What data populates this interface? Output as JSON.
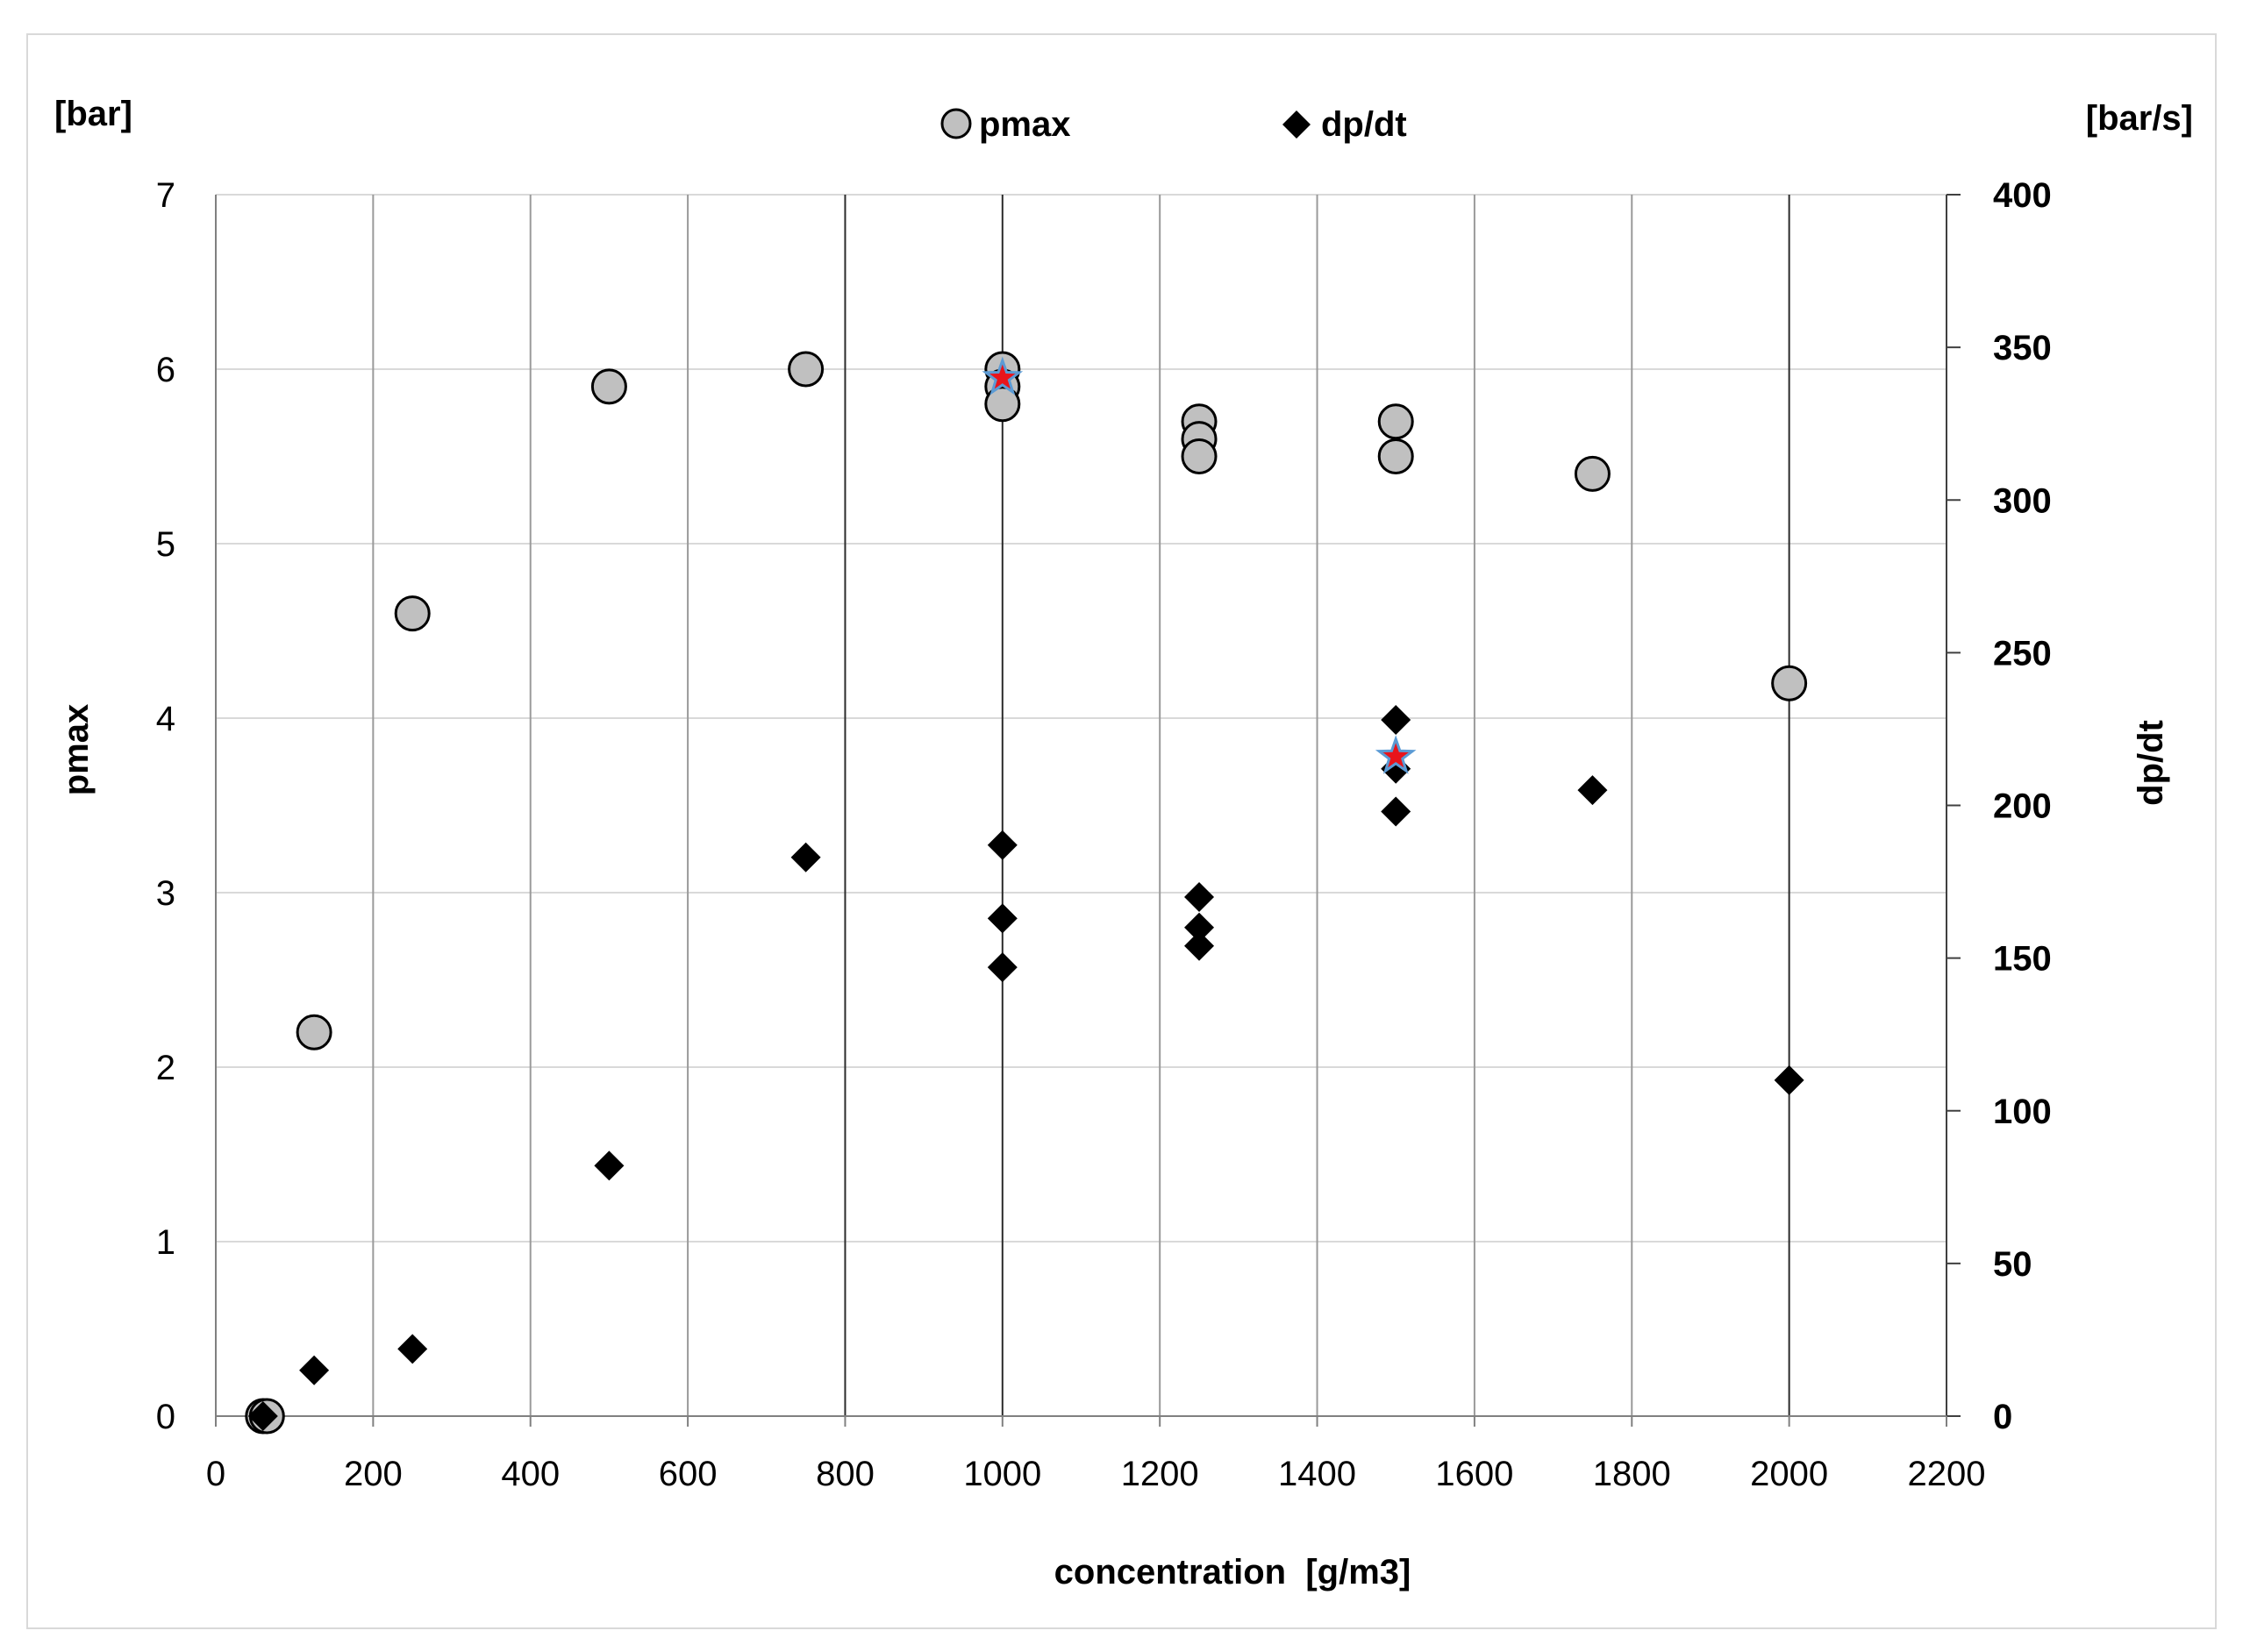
{
  "chart_data": {
    "type": "scatter",
    "title": "",
    "xlabel": "concentration  [g/m3]",
    "ylabel_left": "pmax",
    "ylabel_right": "dp/dt",
    "unit_left": "[bar]",
    "unit_right": "[bar/s]",
    "xlim": [
      0,
      2200
    ],
    "ylim_left": [
      0,
      7
    ],
    "ylim_right": [
      0,
      400
    ],
    "x_ticks": [
      0,
      200,
      400,
      600,
      800,
      1000,
      1200,
      1400,
      1600,
      1800,
      2000,
      2200
    ],
    "y_left_ticks": [
      0,
      1,
      2,
      3,
      4,
      5,
      6,
      7
    ],
    "y_right_ticks": [
      0,
      50,
      100,
      150,
      200,
      250,
      300,
      350,
      400
    ],
    "grid": true,
    "legend_position": "top-center",
    "series": [
      {
        "name": "pmax",
        "axis": "left",
        "marker": "circle",
        "color": "#c0c0c0",
        "edge_color": "#000000",
        "points": [
          [
            60,
            0
          ],
          [
            65,
            0
          ],
          [
            125,
            2.2
          ],
          [
            250,
            4.6
          ],
          [
            500,
            5.9
          ],
          [
            750,
            6.0
          ],
          [
            1000,
            6.0
          ],
          [
            1000,
            5.9
          ],
          [
            1000,
            5.8
          ],
          [
            1250,
            5.7
          ],
          [
            1250,
            5.6
          ],
          [
            1250,
            5.5
          ],
          [
            1500,
            5.7
          ],
          [
            1500,
            5.5
          ],
          [
            1750,
            5.4
          ],
          [
            2000,
            4.2
          ]
        ]
      },
      {
        "name": "dp/dt",
        "axis": "right",
        "marker": "diamond",
        "color": "#000000",
        "points": [
          [
            60,
            0
          ],
          [
            125,
            15
          ],
          [
            250,
            22
          ],
          [
            500,
            82
          ],
          [
            750,
            183
          ],
          [
            1000,
            187
          ],
          [
            1000,
            163
          ],
          [
            1000,
            147
          ],
          [
            1250,
            170
          ],
          [
            1250,
            160
          ],
          [
            1250,
            154
          ],
          [
            1500,
            228
          ],
          [
            1500,
            212
          ],
          [
            1500,
            198
          ],
          [
            1750,
            205
          ],
          [
            2000,
            110
          ]
        ]
      },
      {
        "marker": "star",
        "color": "#e8141b",
        "edge_color": "#5b9bd5",
        "points_left_axis": [
          [
            1000,
            5.95
          ],
          [
            1500,
            3.78
          ]
        ]
      }
    ]
  }
}
